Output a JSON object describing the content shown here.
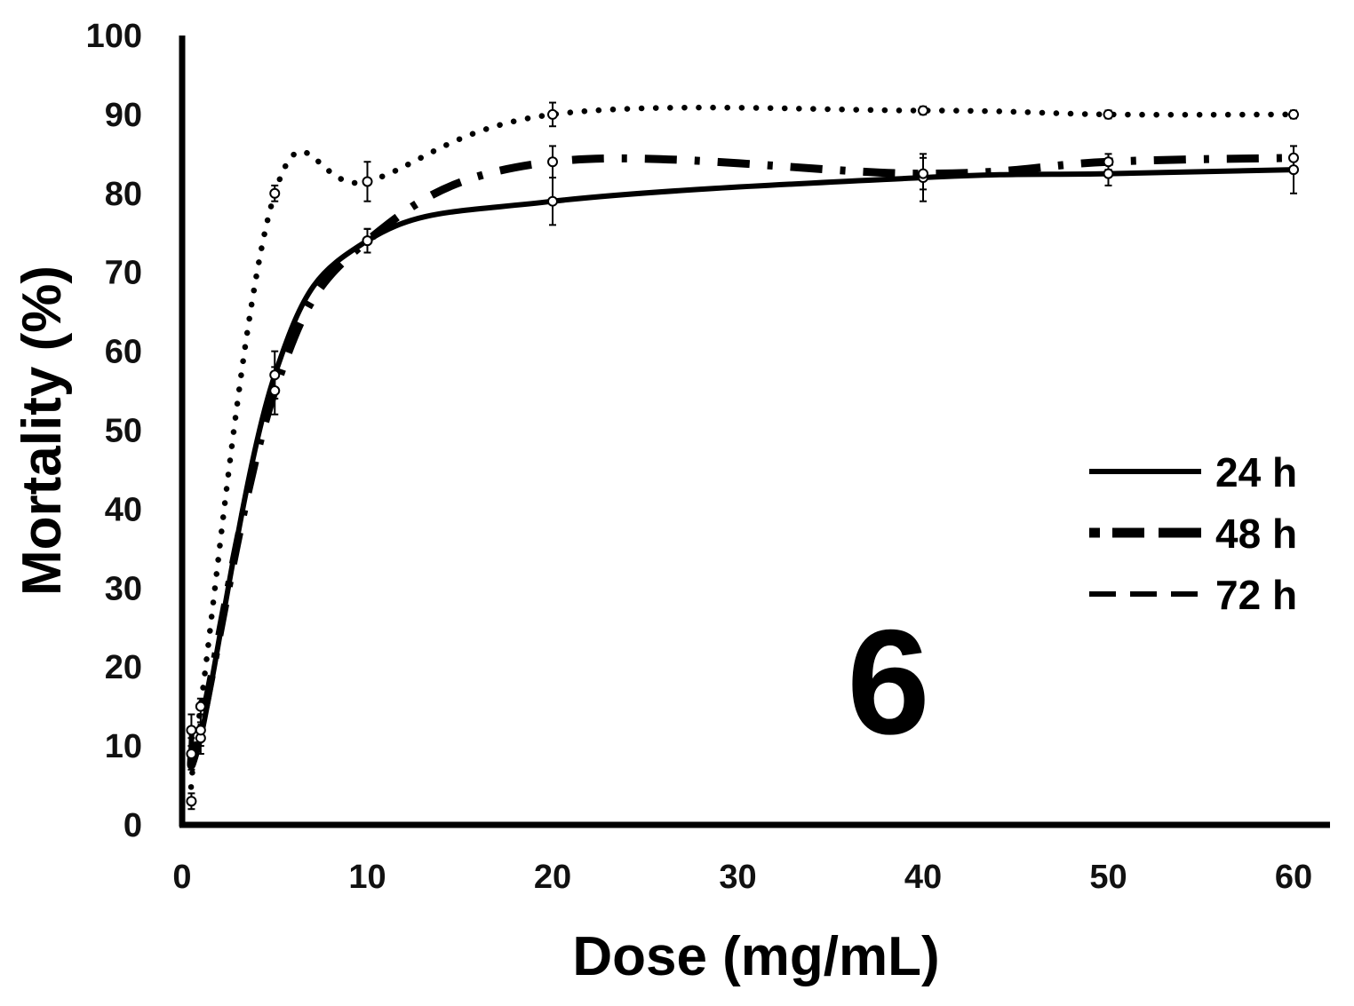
{
  "chart_data": {
    "type": "line",
    "title": "",
    "xlabel": "Dose (mg/mL)",
    "ylabel": "Mortality  (%)",
    "panel_label": "6",
    "xlim": [
      0,
      60
    ],
    "ylim": [
      0,
      100
    ],
    "x_ticks": [
      "0",
      "10",
      "20",
      "30",
      "40",
      "50",
      "60"
    ],
    "y_ticks": [
      "0",
      "10",
      "20",
      "30",
      "40",
      "50",
      "60",
      "70",
      "80",
      "90",
      "100"
    ],
    "grid": false,
    "legend_position": "right",
    "x": [
      0.5,
      1,
      5,
      10,
      20,
      40,
      50,
      60
    ],
    "series": [
      {
        "name": "24 h",
        "style": "solid",
        "color": "#000000",
        "values": [
          12,
          11,
          57,
          74,
          79,
          82,
          82.5,
          83
        ],
        "errors": [
          2,
          2,
          3,
          1.5,
          3,
          3,
          1.5,
          3
        ]
      },
      {
        "name": "48 h",
        "style": "dash-dot",
        "color": "#000000",
        "values": [
          9,
          12,
          55,
          74,
          84,
          82.5,
          84,
          84.5
        ],
        "errors": [
          2,
          2,
          3,
          1.5,
          2,
          2,
          1,
          1.5
        ]
      },
      {
        "name": "72 h",
        "style": "dotted",
        "color": "#000000",
        "values": [
          3,
          15,
          80,
          81.5,
          90,
          90.5,
          90,
          90
        ],
        "errors": [
          1,
          1,
          1,
          2.5,
          1.5,
          0.5,
          0.5,
          0.5
        ]
      }
    ]
  }
}
